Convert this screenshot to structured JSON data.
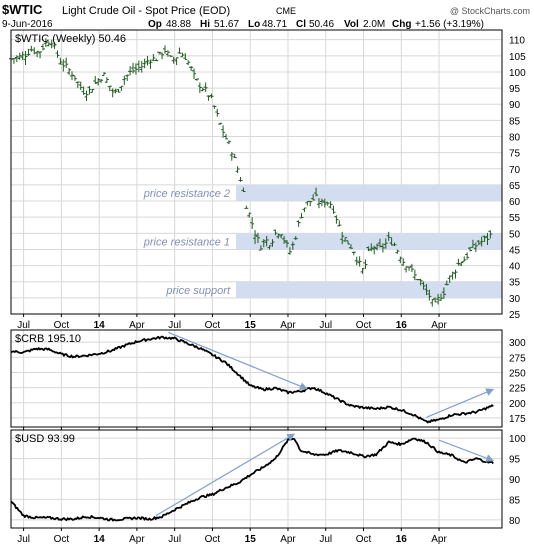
{
  "header": {
    "symbol": "$WTIC",
    "name": "Light Crude Oil - Spot Price (EOD)",
    "exchange": "CME",
    "date": "9-Jun-2016",
    "op_label": "Op",
    "op": "48.88",
    "hi_label": "Hi",
    "hi": "51.67",
    "lo_label": "Lo",
    "lo": "48.71",
    "cl_label": "Cl",
    "cl": "50.46",
    "vol_label": "Vol",
    "vol": "2.0M",
    "chg_label": "Chg",
    "chg": "+1.56 (+3.19%)",
    "watermark": "@ StockCharts.com"
  },
  "colors": {
    "ohlc": "#1e5a1e",
    "line": "#000000",
    "band": "#d3ddf0",
    "band_label": "#7f8fb8",
    "arrow": "#7f9fcf",
    "grid": "#d8d8d8",
    "frame": "#000000"
  },
  "x_axis": {
    "tick_labels": [
      "Jul",
      "Oct",
      "14",
      "Apr",
      "Jul",
      "Oct",
      "15",
      "Apr",
      "Jul",
      "Oct",
      "16",
      "Apr"
    ],
    "bold_ticks": [
      "14",
      "15",
      "16"
    ]
  },
  "chart_data": [
    {
      "type": "line",
      "variant": "ohlc-bars",
      "panel": "price",
      "legend": "$WTIC (Weekly) 50.46",
      "x_unit": "months since Jul 2013",
      "ylim": [
        25,
        113
      ],
      "y_ticks": [
        "25",
        "30",
        "35",
        "40",
        "45",
        "50",
        "55",
        "60",
        "65",
        "70",
        "75",
        "80",
        "85",
        "90",
        "95",
        "100",
        "105",
        "110"
      ],
      "bands": [
        {
          "label": "price resistance 2",
          "low": 60,
          "high": 65
        },
        {
          "label": "price resistance 1",
          "low": 45,
          "high": 50
        },
        {
          "label": "price support",
          "low": 30,
          "high": 35
        }
      ],
      "path": [
        [
          -1,
          104
        ],
        [
          0,
          105
        ],
        [
          0.6,
          107
        ],
        [
          1.2,
          106
        ],
        [
          1.8,
          109
        ],
        [
          2.2,
          110
        ],
        [
          2.6,
          106
        ],
        [
          3,
          103
        ],
        [
          3.5,
          101
        ],
        [
          4,
          99
        ],
        [
          4.4,
          96
        ],
        [
          4.8,
          94
        ],
        [
          5.2,
          94
        ],
        [
          5.6,
          96
        ],
        [
          6,
          98
        ],
        [
          6.4,
          99
        ],
        [
          6.8,
          96
        ],
        [
          7.2,
          93
        ],
        [
          7.6,
          95
        ],
        [
          8,
          98
        ],
        [
          8.5,
          100
        ],
        [
          9,
          101
        ],
        [
          9.5,
          102
        ],
        [
          10,
          104
        ],
        [
          10.5,
          104
        ],
        [
          11,
          106
        ],
        [
          11.3,
          107
        ],
        [
          11.6,
          104
        ],
        [
          12,
          104
        ],
        [
          12.4,
          106
        ],
        [
          12.8,
          105
        ],
        [
          13.2,
          102
        ],
        [
          13.6,
          98
        ],
        [
          14,
          96
        ],
        [
          14.5,
          94
        ],
        [
          15,
          91
        ],
        [
          15.5,
          85
        ],
        [
          16,
          80
        ],
        [
          16.5,
          76
        ],
        [
          17,
          70
        ],
        [
          17.3,
          66
        ],
        [
          17.6,
          60
        ],
        [
          18,
          55
        ],
        [
          18.4,
          50
        ],
        [
          18.8,
          46
        ],
        [
          19.2,
          48
        ],
        [
          19.6,
          47
        ],
        [
          20,
          50
        ],
        [
          20.4,
          51
        ],
        [
          20.8,
          47
        ],
        [
          21.2,
          44
        ],
        [
          21.6,
          49
        ],
        [
          22,
          55
        ],
        [
          22.4,
          59
        ],
        [
          22.8,
          60
        ],
        [
          23.2,
          61
        ],
        [
          23.6,
          59
        ],
        [
          24,
          60
        ],
        [
          24.5,
          59
        ],
        [
          25,
          53
        ],
        [
          25.4,
          49
        ],
        [
          25.8,
          47
        ],
        [
          26.2,
          45
        ],
        [
          26.6,
          41
        ],
        [
          27,
          38
        ],
        [
          27.4,
          44
        ],
        [
          27.8,
          46
        ],
        [
          28.2,
          45
        ],
        [
          28.6,
          46
        ],
        [
          29,
          48
        ],
        [
          29.4,
          47
        ],
        [
          29.8,
          44
        ],
        [
          30.2,
          41
        ],
        [
          30.6,
          40
        ],
        [
          31,
          37
        ],
        [
          31.4,
          36
        ],
        [
          31.8,
          33
        ],
        [
          32.2,
          31
        ],
        [
          32.6,
          27
        ],
        [
          33,
          30
        ],
        [
          33.4,
          32
        ],
        [
          33.8,
          36
        ],
        [
          34.2,
          38
        ],
        [
          34.6,
          41
        ],
        [
          35,
          42
        ],
        [
          35.4,
          44
        ],
        [
          35.8,
          46
        ],
        [
          36.2,
          47
        ],
        [
          36.6,
          48
        ],
        [
          37,
          49
        ],
        [
          37.3,
          50.46
        ]
      ]
    },
    {
      "type": "line",
      "panel": "crb",
      "legend": "$CRB 195.10",
      "x_unit": "months since Jul 2013",
      "ylim": [
        160,
        320
      ],
      "y_ticks": [
        "175",
        "200",
        "225",
        "250",
        "275",
        "300"
      ],
      "path": [
        [
          -1,
          285
        ],
        [
          0,
          283
        ],
        [
          1,
          289
        ],
        [
          2,
          288
        ],
        [
          3,
          280
        ],
        [
          4,
          276
        ],
        [
          5,
          278
        ],
        [
          6,
          281
        ],
        [
          7,
          286
        ],
        [
          8,
          294
        ],
        [
          9,
          301
        ],
        [
          10,
          305
        ],
        [
          11,
          308
        ],
        [
          12,
          306
        ],
        [
          13,
          298
        ],
        [
          14,
          290
        ],
        [
          15,
          279
        ],
        [
          16,
          267
        ],
        [
          17,
          248
        ],
        [
          18,
          228
        ],
        [
          19,
          222
        ],
        [
          20,
          224
        ],
        [
          21,
          217
        ],
        [
          22,
          219
        ],
        [
          23,
          225
        ],
        [
          24,
          216
        ],
        [
          25,
          205
        ],
        [
          26,
          195
        ],
        [
          27,
          192
        ],
        [
          28,
          190
        ],
        [
          29,
          193
        ],
        [
          30,
          188
        ],
        [
          31,
          180
        ],
        [
          32,
          168
        ],
        [
          33,
          172
        ],
        [
          34,
          180
        ],
        [
          35,
          182
        ],
        [
          36,
          185
        ],
        [
          37,
          193
        ],
        [
          37.3,
          195.1
        ]
      ],
      "trend_arrows": [
        [
          [
            11.5,
            316
          ],
          [
            22.5,
            223
          ]
        ],
        [
          [
            32,
            176
          ],
          [
            37.3,
            222
          ]
        ]
      ]
    },
    {
      "type": "line",
      "panel": "usd",
      "legend": "$USD 93.99",
      "x_unit": "months since Jul 2013",
      "ylim": [
        78,
        102
      ],
      "y_ticks": [
        "80",
        "85",
        "90",
        "95",
        "100"
      ],
      "path": [
        [
          -1,
          84.5
        ],
        [
          0,
          81
        ],
        [
          1,
          80.5
        ],
        [
          2,
          80.5
        ],
        [
          3,
          80.2
        ],
        [
          4,
          80.2
        ],
        [
          5,
          80.8
        ],
        [
          6,
          80.5
        ],
        [
          7,
          80
        ],
        [
          8,
          80.2
        ],
        [
          9,
          80.5
        ],
        [
          10,
          80.2
        ],
        [
          11,
          80.8
        ],
        [
          12,
          82.5
        ],
        [
          13,
          84
        ],
        [
          14,
          85.5
        ],
        [
          15,
          86.2
        ],
        [
          16,
          87.8
        ],
        [
          17,
          89
        ],
        [
          18,
          91
        ],
        [
          19,
          92.8
        ],
        [
          20,
          95
        ],
        [
          21,
          99.5
        ],
        [
          21.5,
          100
        ],
        [
          22,
          97
        ],
        [
          23,
          96
        ],
        [
          24,
          96
        ],
        [
          25,
          97
        ],
        [
          26,
          96.5
        ],
        [
          27,
          95.5
        ],
        [
          28,
          96
        ],
        [
          29,
          99
        ],
        [
          30,
          98.5
        ],
        [
          31,
          100
        ],
        [
          32,
          99
        ],
        [
          33,
          96.5
        ],
        [
          34,
          95.8
        ],
        [
          35,
          94
        ],
        [
          36,
          95
        ],
        [
          37,
          94
        ],
        [
          37.3,
          93.99
        ]
      ],
      "trend_arrows": [
        [
          [
            10.5,
            81
          ],
          [
            21.5,
            101
          ]
        ],
        [
          [
            33,
            99.5
          ],
          [
            37.3,
            94.5
          ]
        ]
      ]
    }
  ]
}
